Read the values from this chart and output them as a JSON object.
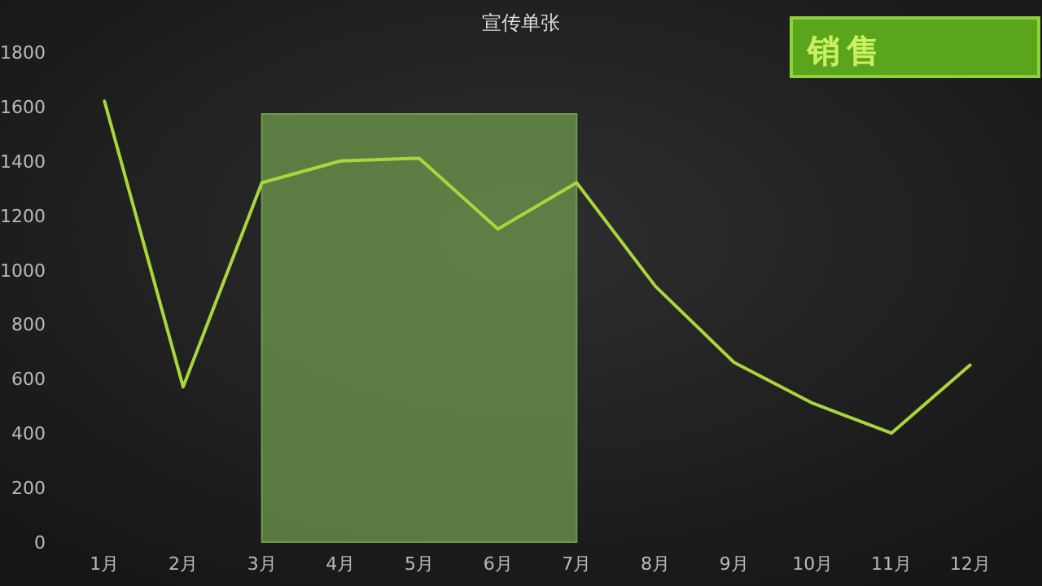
{
  "chart_data": {
    "type": "line",
    "title": "宣传单张",
    "categories": [
      "1月",
      "2月",
      "3月",
      "4月",
      "5月",
      "6月",
      "7月",
      "8月",
      "9月",
      "10月",
      "11月",
      "12月"
    ],
    "series": [
      {
        "color": "#a8d63c",
        "values": [
          1620,
          570,
          1320,
          1400,
          1410,
          1150,
          1320,
          940,
          660,
          510,
          400,
          650
        ]
      }
    ],
    "ylim": [
      0,
      1800
    ],
    "yticks": [
      0,
      200,
      400,
      600,
      800,
      1000,
      1200,
      1400,
      1600,
      1800
    ],
    "bands": [
      {
        "axis": "x",
        "from": "3月",
        "to": "7月",
        "color": "#6e9a4c"
      }
    ],
    "annotations": [
      "销售"
    ],
    "marker": "none",
    "line_style": "solid",
    "grid": false
  }
}
